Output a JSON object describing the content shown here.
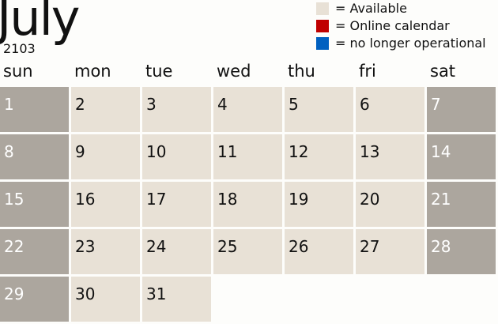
{
  "header": {
    "month": "July",
    "year": "2103"
  },
  "legend": [
    {
      "label": "= Available",
      "color": "#e8e1d6"
    },
    {
      "label": "= Online calendar",
      "color": "#c00000"
    },
    {
      "label": "= no longer operational",
      "color": "#0060c0"
    }
  ],
  "weekdays": [
    "sun",
    "mon",
    "tue",
    "wed",
    "thu",
    "fri",
    "sat"
  ],
  "days": [
    "1",
    "2",
    "3",
    "4",
    "5",
    "6",
    "7",
    "8",
    "9",
    "10",
    "11",
    "12",
    "13",
    "14",
    "15",
    "16",
    "17",
    "18",
    "19",
    "20",
    "21",
    "22",
    "23",
    "24",
    "25",
    "26",
    "27",
    "28",
    "29",
    "30",
    "31"
  ],
  "colors": {
    "available": "#e8e1d6",
    "weekend": "#aca69e"
  }
}
